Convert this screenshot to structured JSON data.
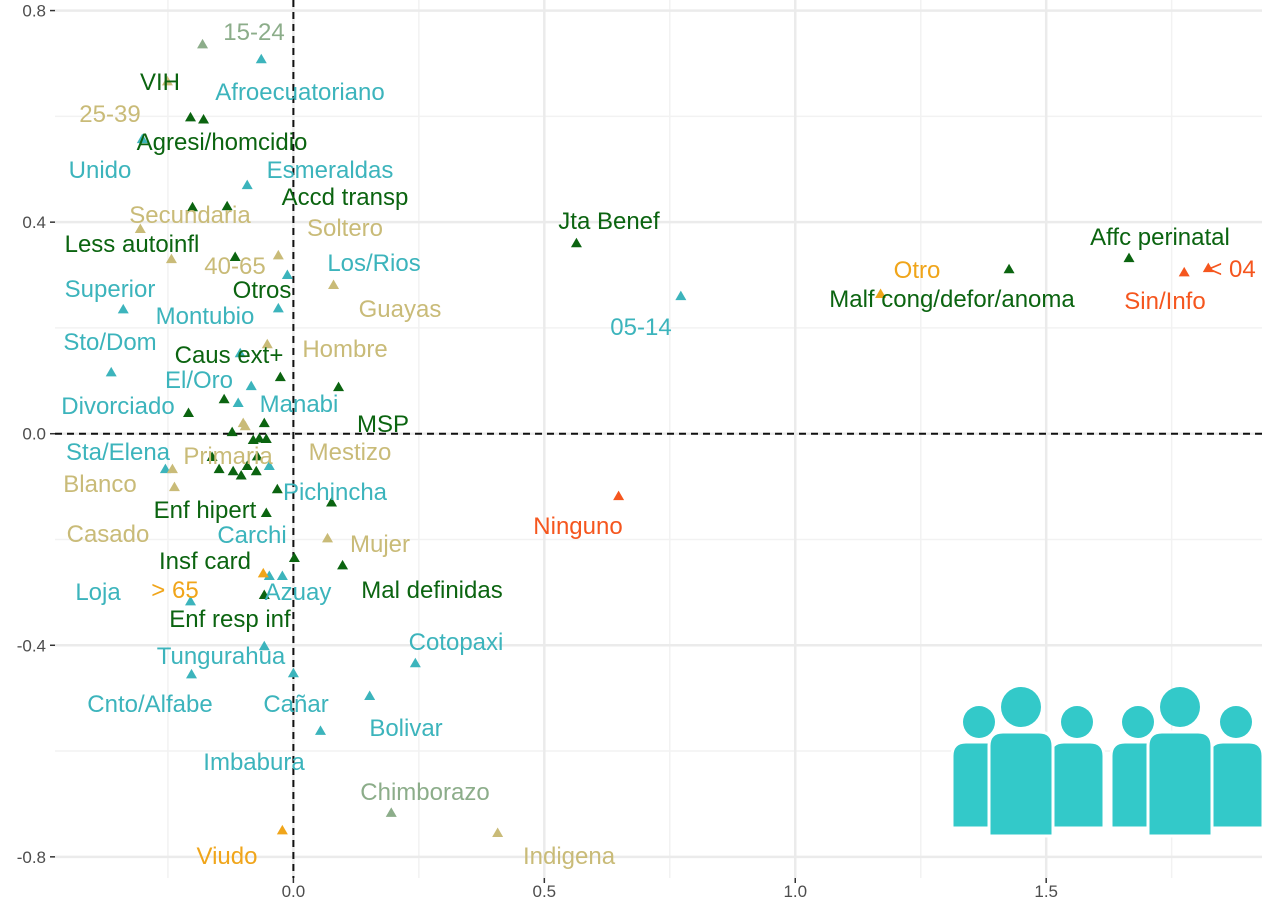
{
  "chart_data": {
    "type": "scatter",
    "title": "",
    "xlabel": "",
    "ylabel": "",
    "xlim": [
      -0.475,
      1.93
    ],
    "ylim": [
      -0.84,
      0.82
    ],
    "x_ticks": [
      "0.0",
      "0.5",
      "1.0",
      "1.5"
    ],
    "x_tick_values": [
      0,
      0.5,
      1.0,
      1.5
    ],
    "y_ticks": [
      "0.8",
      "0.4",
      "0.0",
      "-0.4",
      "-0.8"
    ],
    "y_tick_values": [
      0.8,
      0.4,
      0,
      -0.4,
      -0.8
    ],
    "grid": true,
    "reference_lines": [
      {
        "axis": "x",
        "value": 0,
        "style": "dashed"
      },
      {
        "axis": "y",
        "value": 0,
        "style": "dashed"
      }
    ],
    "colors": {
      "g": "#0b6410",
      "t": "#3cb4bc",
      "s": "#8cad8a",
      "k": "#c9bb78",
      "o": "#f0a51a",
      "r": "#f5561e"
    },
    "points": [
      {
        "label": "VIH",
        "x": -0.205,
        "y": 0.599,
        "c": "g"
      },
      {
        "label": "Agresi/homcidio",
        "x": -0.179,
        "y": 0.595,
        "c": "g"
      },
      {
        "label": "Accd transp",
        "x": -0.132,
        "y": 0.431,
        "c": "g"
      },
      {
        "label": "Less autoinfl",
        "x": -0.201,
        "y": 0.429,
        "c": "g"
      },
      {
        "label": "Otros",
        "x": -0.116,
        "y": 0.335,
        "c": "g"
      },
      {
        "label": "Jta Benef",
        "x": 0.564,
        "y": 0.361,
        "c": "g"
      },
      {
        "label": "Affc perinatal",
        "x": 1.665,
        "y": 0.333,
        "c": "g"
      },
      {
        "label": "Malf cong/defor/anoma",
        "x": 1.426,
        "y": 0.312,
        "c": "g"
      },
      {
        "label": "Caus ext+",
        "x": -0.026,
        "y": 0.108,
        "c": "g"
      },
      {
        "label": "MSP",
        "x": 0.09,
        "y": 0.089,
        "c": "g"
      },
      {
        "label": "Enf hipert",
        "x": -0.054,
        "y": -0.149,
        "c": "g"
      },
      {
        "label": "Insf card",
        "x": 0.002,
        "y": -0.234,
        "c": "g"
      },
      {
        "label": "Mal definidas",
        "x": 0.098,
        "y": -0.248,
        "c": "g"
      },
      {
        "label": "Enf resp inf",
        "x": -0.058,
        "y": -0.304,
        "c": "g"
      },
      {
        "label": "",
        "x": 0.076,
        "y": -0.129,
        "c": "g"
      },
      {
        "label": "",
        "x": -0.032,
        "y": -0.104,
        "c": "g"
      },
      {
        "label": "",
        "x": -0.209,
        "y": 0.04,
        "c": "g"
      },
      {
        "label": "",
        "x": -0.138,
        "y": 0.066,
        "c": "g"
      },
      {
        "label": "",
        "x": -0.122,
        "y": 0.004,
        "c": "g"
      },
      {
        "label": "",
        "x": -0.058,
        "y": 0.021,
        "c": "g"
      },
      {
        "label": "",
        "x": -0.08,
        "y": -0.011,
        "c": "g"
      },
      {
        "label": "",
        "x": -0.068,
        "y": -0.008,
        "c": "g"
      },
      {
        "label": "",
        "x": -0.054,
        "y": -0.009,
        "c": "g"
      },
      {
        "label": "",
        "x": -0.162,
        "y": -0.043,
        "c": "g"
      },
      {
        "label": "",
        "x": -0.148,
        "y": -0.066,
        "c": "g"
      },
      {
        "label": "",
        "x": -0.12,
        "y": -0.07,
        "c": "g"
      },
      {
        "label": "",
        "x": -0.092,
        "y": -0.06,
        "c": "g"
      },
      {
        "label": "",
        "x": -0.104,
        "y": -0.078,
        "c": "g"
      },
      {
        "label": "",
        "x": -0.074,
        "y": -0.07,
        "c": "g"
      },
      {
        "label": "",
        "x": -0.072,
        "y": -0.042,
        "c": "g"
      },
      {
        "label": "Afroecuatoriano",
        "x": -0.064,
        "y": 0.709,
        "c": "t"
      },
      {
        "label": "Unido",
        "x": -0.301,
        "y": 0.558,
        "c": "t"
      },
      {
        "label": "Esmeraldas",
        "x": -0.092,
        "y": 0.471,
        "c": "t"
      },
      {
        "label": "Superior",
        "x": -0.339,
        "y": 0.236,
        "c": "t"
      },
      {
        "label": "Montubio",
        "x": -0.03,
        "y": 0.238,
        "c": "t"
      },
      {
        "label": "Los/Rios",
        "x": -0.012,
        "y": 0.301,
        "c": "t"
      },
      {
        "label": "Divorciado",
        "x": -0.363,
        "y": 0.117,
        "c": "t"
      },
      {
        "label": "Sto/Dom",
        "x": -0.106,
        "y": 0.153,
        "c": "t"
      },
      {
        "label": "El/Oro",
        "x": -0.084,
        "y": 0.091,
        "c": "t"
      },
      {
        "label": "Manabi",
        "x": -0.11,
        "y": 0.059,
        "c": "t"
      },
      {
        "label": "Sta/Elena",
        "x": -0.255,
        "y": -0.066,
        "c": "t"
      },
      {
        "label": "Pichincha",
        "x": -0.048,
        "y": -0.06,
        "c": "t"
      },
      {
        "label": "Carchi",
        "x": -0.048,
        "y": -0.268,
        "c": "t"
      },
      {
        "label": "Azuay",
        "x": -0.022,
        "y": -0.268,
        "c": "t"
      },
      {
        "label": "Loja",
        "x": -0.205,
        "y": -0.316,
        "c": "t"
      },
      {
        "label": "Tungurahua",
        "x": -0.058,
        "y": -0.401,
        "c": "t"
      },
      {
        "label": "Cnto/Alfabe",
        "x": -0.203,
        "y": -0.454,
        "c": "t"
      },
      {
        "label": "Cañar",
        "x": 0.0,
        "y": -0.452,
        "c": "t"
      },
      {
        "label": "Bolivar",
        "x": 0.152,
        "y": -0.495,
        "c": "t"
      },
      {
        "label": "Cotopaxi",
        "x": 0.243,
        "y": -0.433,
        "c": "t"
      },
      {
        "label": "Imbabura",
        "x": 0.054,
        "y": -0.561,
        "c": "t"
      },
      {
        "label": "05-14",
        "x": 0.772,
        "y": 0.261,
        "c": "t"
      },
      {
        "label": "15-24",
        "x": -0.181,
        "y": 0.737,
        "c": "s"
      },
      {
        "label": "Chimborazo",
        "x": 0.195,
        "y": -0.716,
        "c": "s"
      },
      {
        "label": "25-39",
        "x": -0.251,
        "y": 0.667,
        "c": "k"
      },
      {
        "label": "Secundaria",
        "x": -0.305,
        "y": 0.388,
        "c": "k"
      },
      {
        "label": "Soltero",
        "x": -0.03,
        "y": 0.338,
        "c": "k"
      },
      {
        "label": "40-65",
        "x": -0.243,
        "y": 0.331,
        "c": "k"
      },
      {
        "label": "Guayas",
        "x": 0.08,
        "y": 0.282,
        "c": "k"
      },
      {
        "label": "Hombre",
        "x": -0.052,
        "y": 0.17,
        "c": "k"
      },
      {
        "label": "Mestizo",
        "x": -0.1,
        "y": 0.021,
        "c": "k"
      },
      {
        "label": "Primaria",
        "x": -0.096,
        "y": 0.015,
        "c": "k"
      },
      {
        "label": "Casado",
        "x": -0.237,
        "y": -0.1,
        "c": "k"
      },
      {
        "label": "Blanco",
        "x": -0.241,
        "y": -0.066,
        "c": "k"
      },
      {
        "label": "Mujer",
        "x": 0.068,
        "y": -0.197,
        "c": "k"
      },
      {
        "label": "Indigena",
        "x": 0.407,
        "y": -0.754,
        "c": "k"
      },
      {
        "label": "Otro",
        "x": 1.17,
        "y": 0.265,
        "c": "o"
      },
      {
        "label": "> 65",
        "x": -0.06,
        "y": -0.263,
        "c": "o"
      },
      {
        "label": "Viudo",
        "x": -0.022,
        "y": -0.749,
        "c": "o"
      },
      {
        "label": "Ninguno",
        "x": 0.648,
        "y": -0.117,
        "c": "r"
      },
      {
        "label": "Sin/Info",
        "x": 1.775,
        "y": 0.306,
        "c": "r"
      },
      {
        "label": "< 04",
        "x": 1.823,
        "y": 0.314,
        "c": "r"
      }
    ]
  },
  "icon": {
    "name": "people-group-icon",
    "color": "#33c9c9"
  }
}
